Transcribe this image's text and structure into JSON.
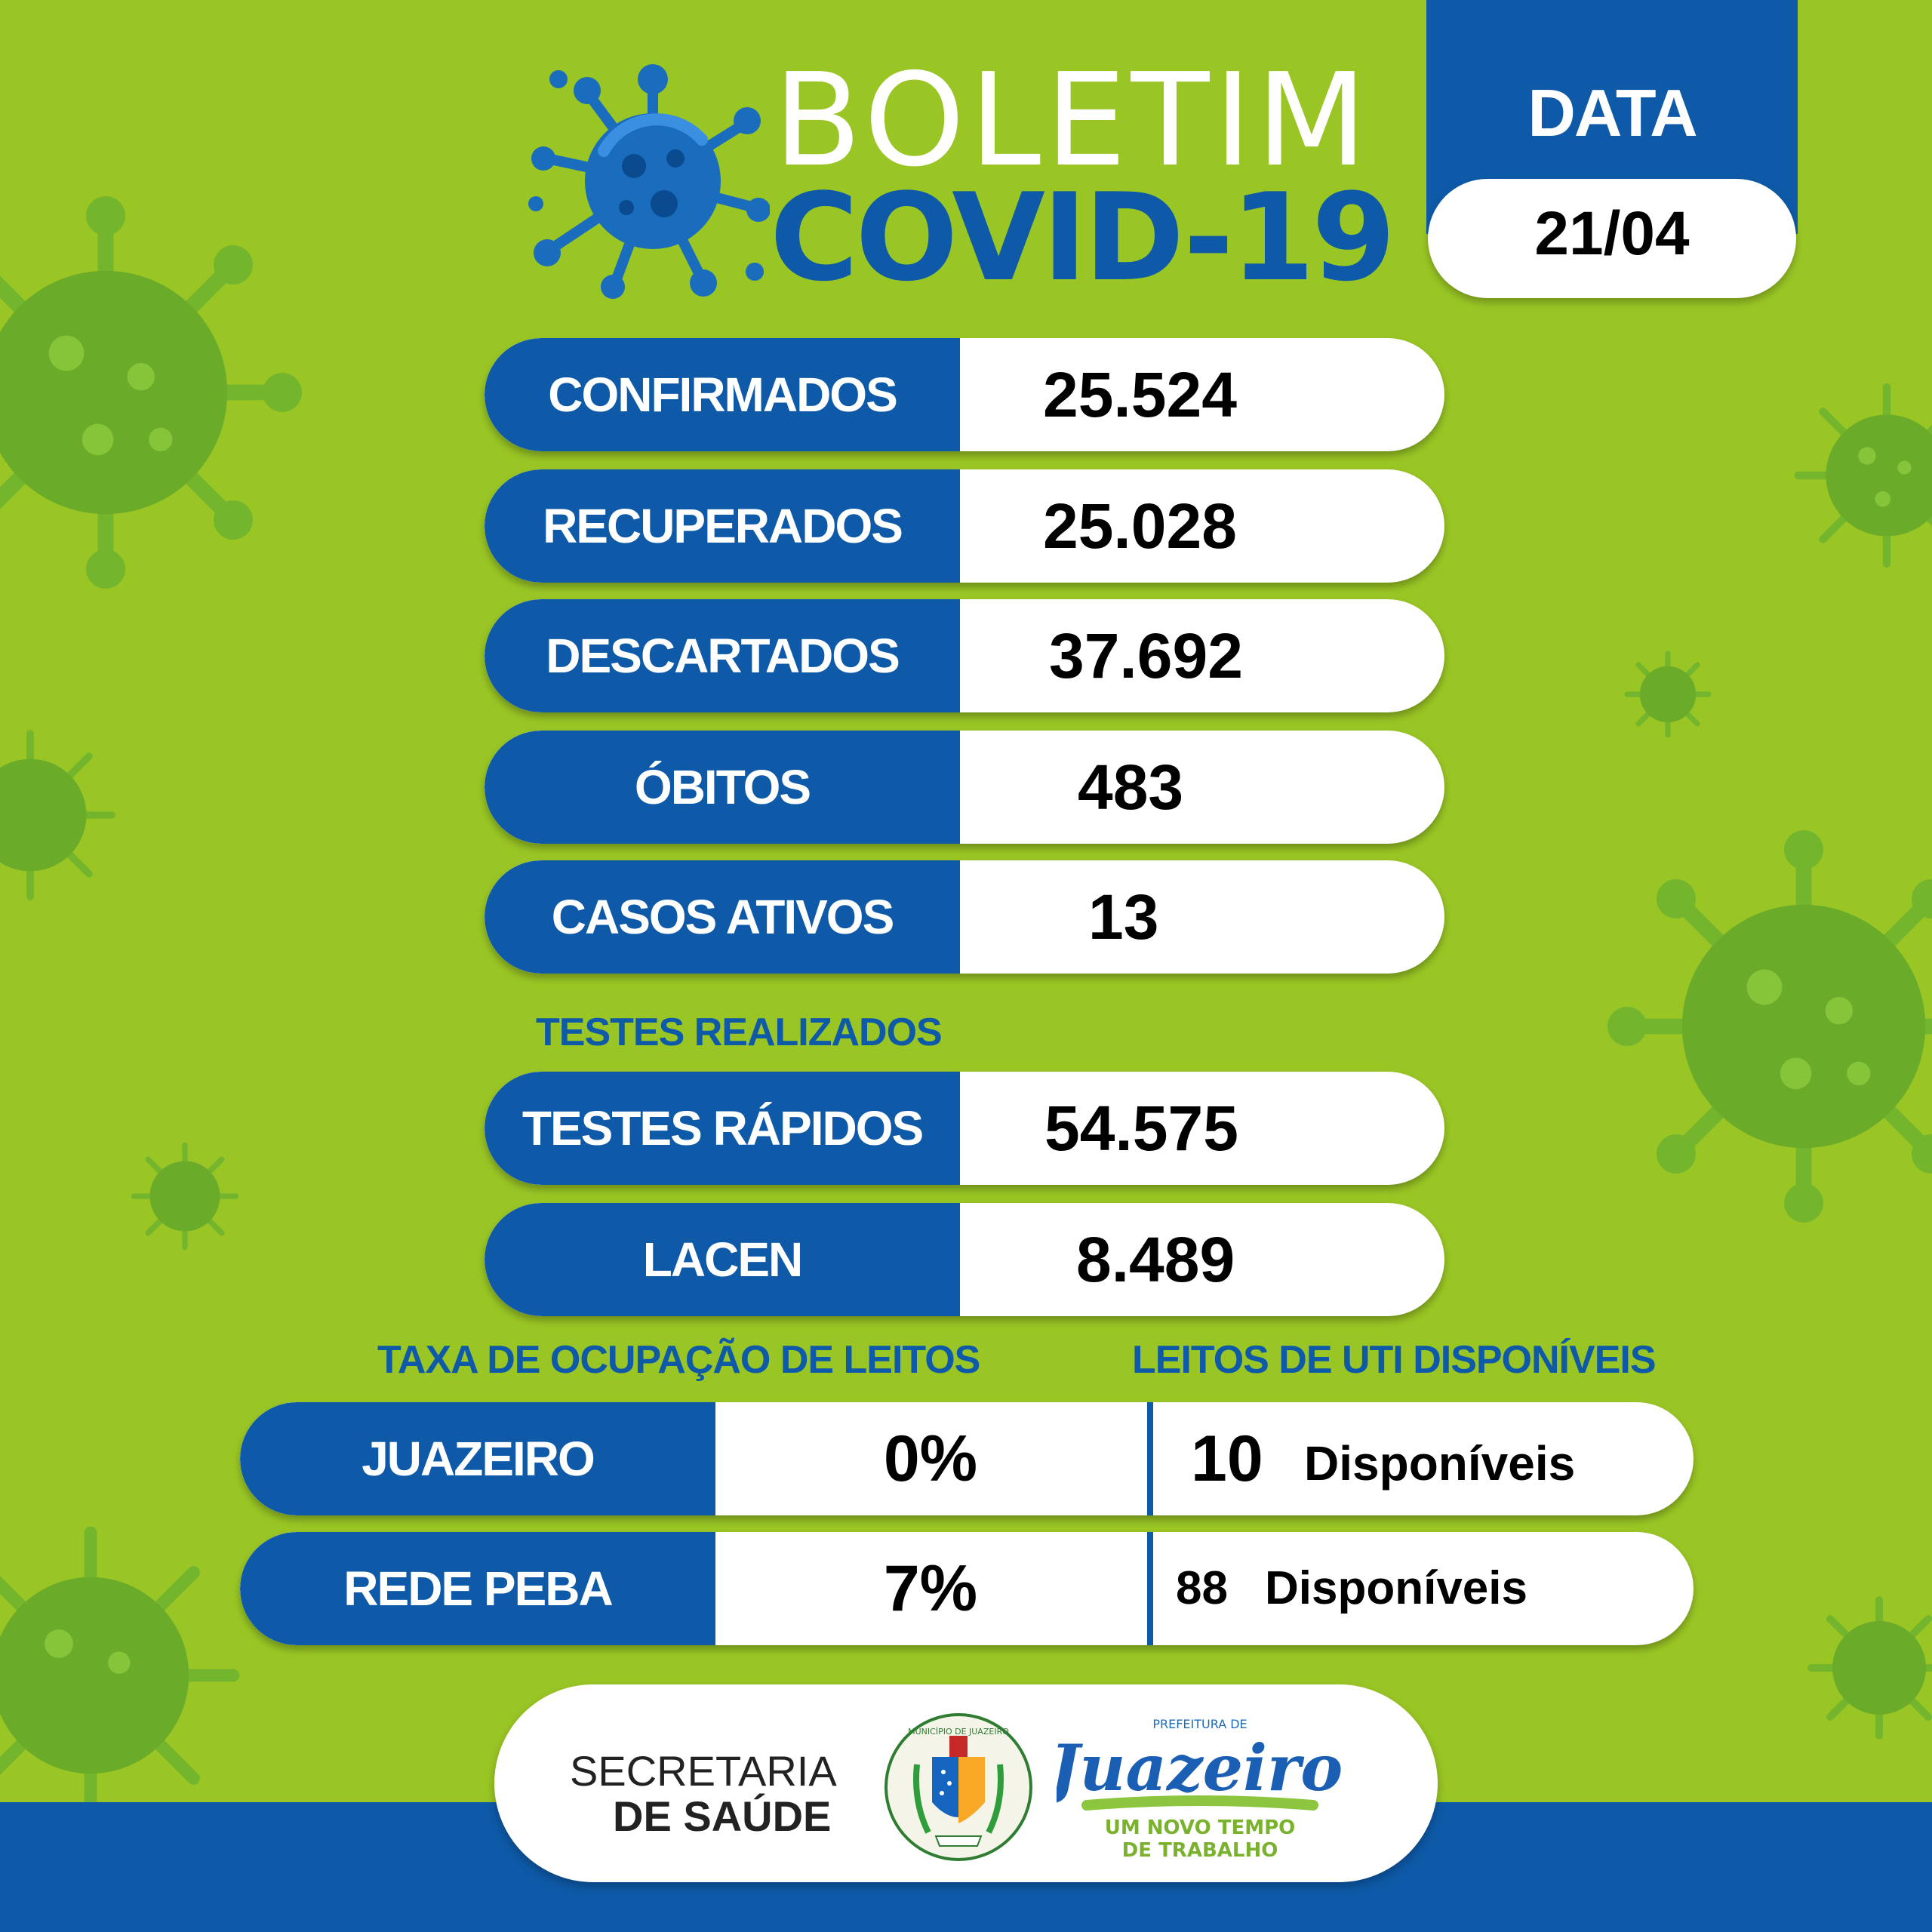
{
  "header": {
    "title_line1": "BOLETIM",
    "title_line2": "COVID-19",
    "logo_icon": "virus-icon"
  },
  "date": {
    "title": "DATA",
    "value": "21/04"
  },
  "stats": [
    {
      "label": "CONFIRMADOS",
      "value": "25.524"
    },
    {
      "label": "RECUPERADOS",
      "value": "25.028"
    },
    {
      "label": "DESCARTADOS",
      "value": "37.692"
    },
    {
      "label": "ÓBITOS",
      "value": "483"
    },
    {
      "label": "CASOS ATIVOS",
      "value": "13"
    }
  ],
  "tests": {
    "section_title": "TESTES REALIZADOS",
    "items": [
      {
        "label": "TESTES RÁPIDOS",
        "value": "54.575"
      },
      {
        "label": "LACEN",
        "value": "8.489"
      }
    ]
  },
  "beds": {
    "occupancy_title": "TAXA DE OCUPAÇÃO DE LEITOS",
    "uti_title": "LEITOS DE UTI DISPONÍVEIS",
    "rows": [
      {
        "label": "JUAZEIRO",
        "occupancy": "0%",
        "available_count": "10",
        "available_text": "Disponíveis"
      },
      {
        "label": "REDE PEBA",
        "occupancy": "7%",
        "available_count": "88",
        "available_text": "Disponíveis"
      }
    ]
  },
  "footer": {
    "secretaria_line1": "SECRETARIA",
    "secretaria_line2": "DE SAÚDE",
    "crest_text_top": "MUNICÍPIO DE JUAZEIRO",
    "prefeitura_small": "PREFEITURA DE",
    "prefeitura_name": "Juazeiro",
    "prefeitura_slogan_1": "UM NOVO TEMPO",
    "prefeitura_slogan_2": "DE TRABALHO"
  },
  "colors": {
    "background": "#9ac625",
    "brand_blue": "#0e5aa8",
    "virus_green": "#6fb22f"
  }
}
